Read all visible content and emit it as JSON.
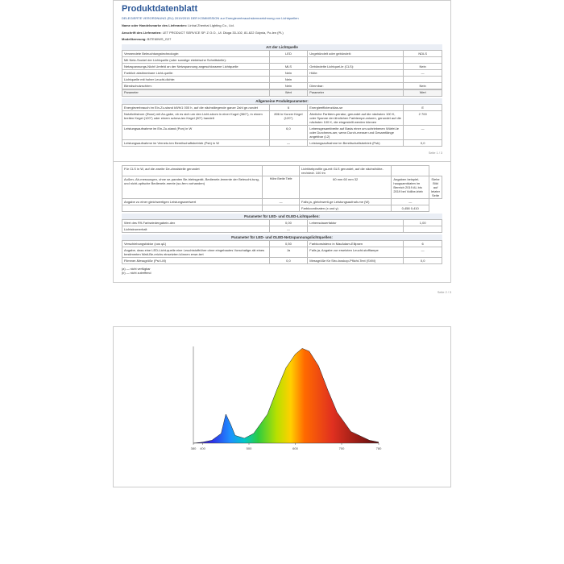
{
  "title": "Produktdatenblatt",
  "subtitle": "DELEGIERTE VERORDNUNG (EU) 2019/2015 DER KOMMISSION zur Energieverbrauchskennzeichnung von Lichtquellen",
  "supplier_name_label": "Name oder Handelsmarke des Lieferanten:",
  "supplier_name": "Linhai Zhenhai Lighting Co., Ltd.",
  "supplier_addr_label": "Anschrift des Lieferanten:",
  "supplier_addr": "LET PRODUCT SERVICE SP. Z O.O., Ul. Długa 33-102, 81-622 Gdynia, Po-len (PL)",
  "model_label": "Modellkennung:",
  "model": "BITE60WS_G27",
  "sect_art": "Art der Lichtquelle",
  "rows1": [
    [
      "Verwendete Beleuchtungstechnologie:",
      "LED",
      "Ungebündelt oder gebündelt:",
      "NDLS"
    ],
    [
      "Mit Netz-Sockel der Lichtquelle (oder sonstige elektrische Schnittstelle):",
      "",
      "",
      ""
    ],
    [
      "Netzspannungs-Nicht Umfeld   an der Netzspannung angeschlossene Lichtquelle",
      "MLS",
      "Gebündelte Lichtquel-le (CLS):",
      "Nein"
    ],
    [
      "Farblich  abstimmbare  Licht-quelle:",
      "Nein",
      "Hülle:",
      "—"
    ],
    [
      "Lichtquelle  mit  hoher  Leucht-dichte:",
      "Nein",
      "",
      ""
    ],
    [
      "Blendschutzschirm:",
      "Nein",
      "Dimmbar:",
      "Nein"
    ]
  ],
  "param_head": [
    "Parameter",
    "Wert",
    "Parameter",
    "Wert"
  ],
  "sect_allg": "Allgemeine Produktparameter:",
  "rows2": [
    [
      "Energieverbrauch  im  Ein-Zu-stand  kWh/1 000  h,  auf  die nächstliegende ganze Zahl ge-rundet",
      "6",
      "Energieeffizienzklas-se",
      "E"
    ],
    [
      "Nutzlichtstrom (Φuse) mit An-gabe, ob es sich um den Licht-strom  in  einer  Kugel (360°), in  einem breiten  Kegel (120°) oder einem schma-len  Kegel (90°) handelt",
      "806 in Kurzer Kegel (120°)",
      "Ähnliche  Farbtem-peratur,  gerundet  auf  die  nächsten 100  K,  oder  Spanne  der ähnlichen Farbtempe-raturen, gerundet auf die nächsten  100  K, die eingestellt werden können",
      "2 700"
    ],
    [
      "Leistungsaufnahme  im  Ein-Zu-stand (Pon) in W",
      "6,0",
      "Lebensgesamtbreite  auf  Basis  einer  um-schriebenen Würfel-le oder Durchmes-ser, wenn Durch-messer und Gesamtlänge angebbar (L2)",
      "—"
    ],
    [
      "Leistungsaufnahme im Vernetz-ten  Bereitschaftsbetrieb  (Psb) in W",
      "—",
      "Leistungsaufnahme im Bereitschaftsbetrieb (Psb)",
      "0,0"
    ]
  ],
  "rows3": [
    [
      "Für CLS in W, auf die zweite De-zimalstelle gerundet",
      "",
      "Lichtfarbprofile  ga-mit GLS  gerundet,  auf die nächsthöhe-ren/niedr. 100 lm",
      ""
    ],
    [
      "Außen-  Ab-messungen, ohne se-paraten Be-triebsgerät, Bedienele-lemente der Beleucht-tung, und nicht-optische Bedienele-mente (so-fern vorhanden)",
      "Höhe Breite Tiefe",
      "60 mm 60 mm 32",
      "Angaben  beispiel-haugsamtdaten  im Bereich  2019  AL  bis 2019  bei  Vollbe-trieb",
      "Siehe Bild auf letzter Seite"
    ],
    [
      "Angabe zu einer gleichwertigen Leistungswertwert",
      "—",
      "Falls  ja, gleichwerti-ge  Leistungsaufnah-me (W)",
      "—"
    ],
    [
      "",
      "",
      "Farbkoordinaten (x und y)",
      "0,458 0,410"
    ]
  ],
  "sect_led": "Parameter für LED- und OLED-Lichtquellen:",
  "rows4": [
    [
      "Wert des R9-Farbwiedergabein-dex",
      "0,00",
      "Lebensdauerfaktor",
      "1,00"
    ],
    [
      "Lichtstromerhalt",
      "—",
      "",
      ""
    ]
  ],
  "sect_led2": "Parameter für LED- und OLED-Netzspannungslichtquellen:",
  "rows5": [
    [
      "Verschiebungsfaktor (cos φ1)",
      "0,50",
      "Farbkonsistenz  in MacAdam-Ellipsen",
      "6"
    ],
    [
      "Angabe,  dass  eine  LED-Licht-quelle  eine  Leuchtstoffröhre ohne eingebautes Vorschaltge-rät eines bestimmten Watt-Be-reichs einsetzten können erwe-tert",
      "Ja",
      "Falls  ja,  Angabe zur  ersetzten  Leucht-stofflampe",
      "—"
    ],
    [
      "Flimmer-Messgröße (Pst LM)",
      "0,0",
      "Messgröße für Stro-boskop-Pflicht-Text (SVM)",
      "0,0"
    ]
  ],
  "foot1": "(a) — nicht verfügbar",
  "foot2": "(b) — nicht zutreffend",
  "page1_num": "Seite 1 / 3",
  "page2_num": "Seite 2 / 3",
  "chart": {
    "xmin": 380,
    "xmax": 780,
    "xticks": [
      380,
      400,
      500,
      600,
      700,
      780
    ],
    "spectrum_stops": [
      {
        "x": 380,
        "c": "#3b1e8f"
      },
      {
        "x": 420,
        "c": "#2e2ee6"
      },
      {
        "x": 460,
        "c": "#1e90ff"
      },
      {
        "x": 490,
        "c": "#00c8c8"
      },
      {
        "x": 520,
        "c": "#2ecc40"
      },
      {
        "x": 560,
        "c": "#b8e000"
      },
      {
        "x": 590,
        "c": "#ffd000"
      },
      {
        "x": 620,
        "c": "#ff6a00"
      },
      {
        "x": 680,
        "c": "#e03020"
      },
      {
        "x": 780,
        "c": "#5a0d0d"
      }
    ],
    "curve": [
      [
        380,
        0
      ],
      [
        400,
        1
      ],
      [
        420,
        3
      ],
      [
        440,
        10
      ],
      [
        450,
        30
      ],
      [
        460,
        20
      ],
      [
        470,
        8
      ],
      [
        490,
        5
      ],
      [
        510,
        10
      ],
      [
        540,
        30
      ],
      [
        560,
        55
      ],
      [
        580,
        78
      ],
      [
        600,
        92
      ],
      [
        615,
        98
      ],
      [
        630,
        95
      ],
      [
        650,
        80
      ],
      [
        670,
        55
      ],
      [
        690,
        32
      ],
      [
        720,
        12
      ],
      [
        760,
        3
      ],
      [
        780,
        1
      ]
    ]
  }
}
